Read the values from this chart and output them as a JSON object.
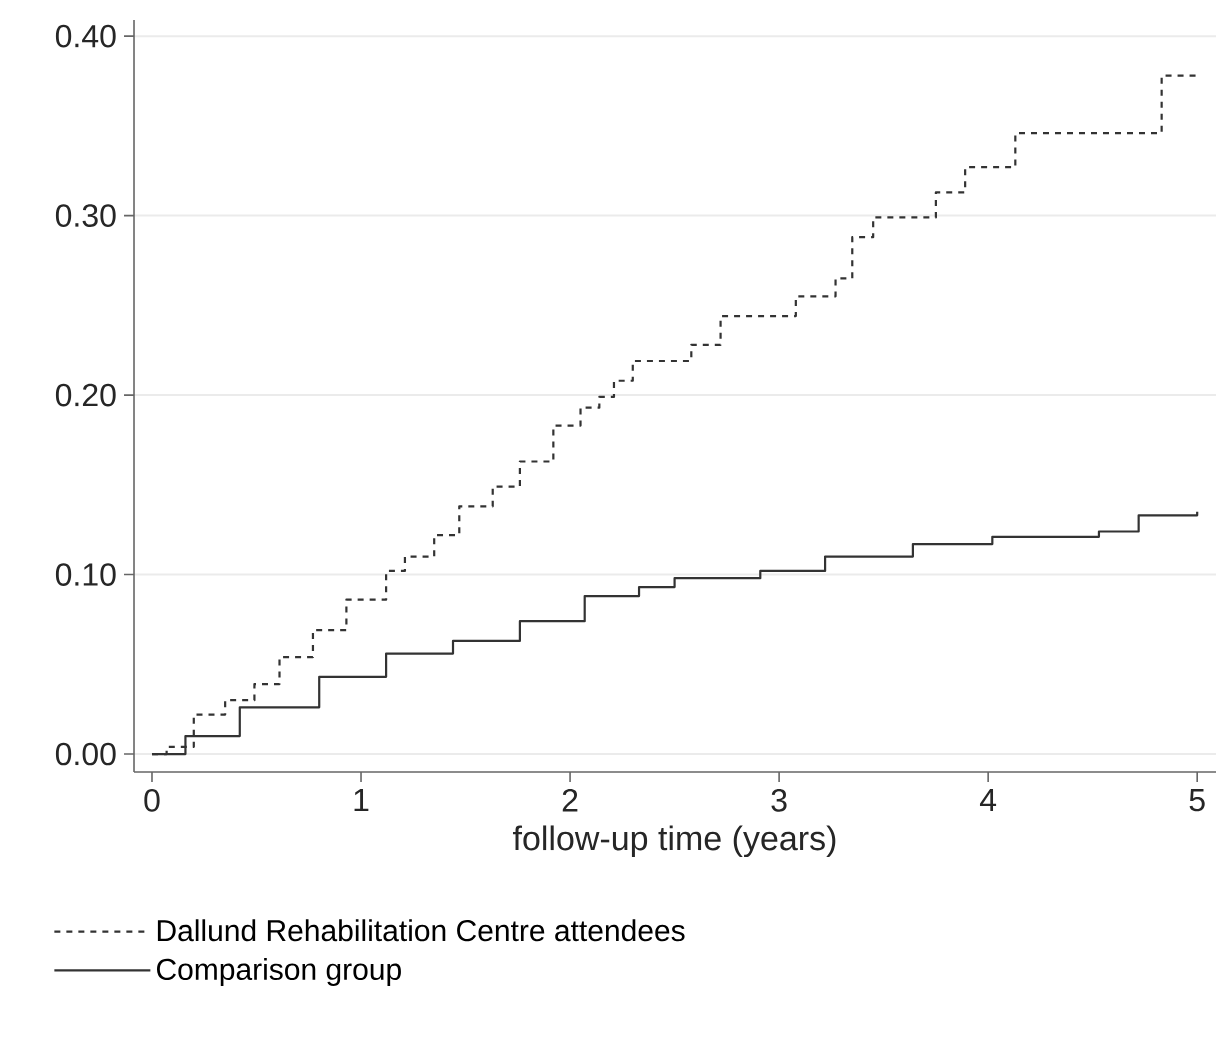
{
  "chart_data": {
    "type": "step",
    "xlabel": "follow-up time (years)",
    "xlim": [
      -0.086,
      5.09
    ],
    "ylim": [
      -0.01,
      0.409
    ],
    "xticks": [
      0,
      1,
      2,
      3,
      4,
      5
    ],
    "yticks": [
      {
        "value": 0,
        "label": "0.00"
      },
      {
        "value": 0.1,
        "label": "0.10"
      },
      {
        "value": 0.2,
        "label": "0.20"
      },
      {
        "value": 0.3,
        "label": "0.30"
      },
      {
        "value": 0.4,
        "label": "0.40"
      }
    ],
    "grid": "y",
    "legend": "bottom",
    "series": [
      {
        "name": "Dallund Rehabilitation Centre attendees",
        "color": "#333333",
        "line_style": "dashed",
        "x": [
          0,
          0.07,
          0.2,
          0.35,
          0.49,
          0.61,
          0.77,
          0.93,
          1.12,
          1.21,
          1.35,
          1.47,
          1.63,
          1.76,
          1.92,
          2.05,
          2.14,
          2.21,
          2.3,
          2.58,
          2.72,
          3.08,
          3.27,
          3.35,
          3.45,
          3.75,
          3.89,
          4.13,
          4.83,
          5.0
        ],
        "values": [
          0,
          0.004,
          0.022,
          0.03,
          0.039,
          0.054,
          0.069,
          0.086,
          0.102,
          0.11,
          0.122,
          0.138,
          0.149,
          0.163,
          0.183,
          0.193,
          0.199,
          0.208,
          0.219,
          0.228,
          0.244,
          0.255,
          0.265,
          0.288,
          0.299,
          0.313,
          0.327,
          0.346,
          0.378,
          0.378
        ]
      },
      {
        "name": "Comparison group",
        "color": "#333333",
        "line_style": "solid",
        "x": [
          0,
          0.04,
          0.16,
          0.42,
          0.8,
          1.12,
          1.44,
          1.76,
          2.07,
          2.33,
          2.5,
          2.91,
          3.22,
          3.64,
          4.02,
          4.53,
          4.72,
          5.0
        ],
        "values": [
          0,
          0,
          0.01,
          0.026,
          0.043,
          0.056,
          0.063,
          0.074,
          0.088,
          0.093,
          0.098,
          0.102,
          0.11,
          0.117,
          0.121,
          0.124,
          0.133,
          0.135
        ]
      }
    ]
  }
}
